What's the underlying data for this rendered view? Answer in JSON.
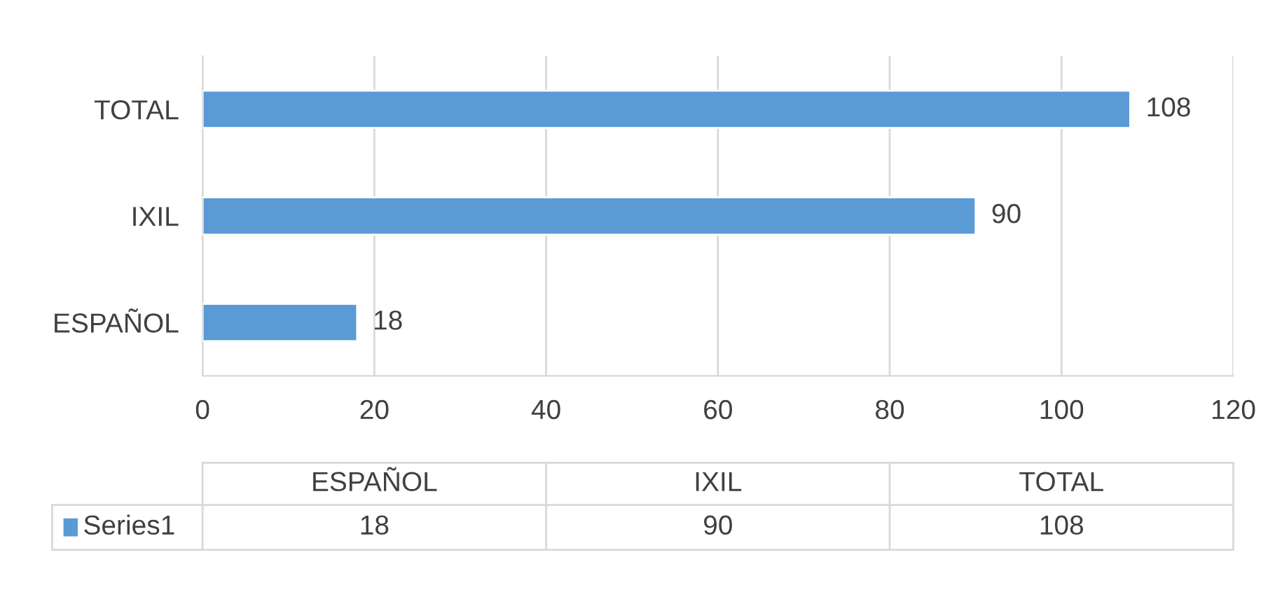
{
  "chart_data": {
    "type": "bar",
    "orientation": "horizontal",
    "categories": [
      "TOTAL",
      "IXIL",
      "ESPAÑOL"
    ],
    "series": [
      {
        "name": "Series1",
        "color": "#5b9bd5",
        "values": [
          108,
          90,
          18
        ],
        "value_labels": [
          "108",
          "90",
          "18"
        ]
      }
    ],
    "xlim": [
      0,
      120
    ],
    "xticks": [
      0,
      20,
      40,
      60,
      80,
      100,
      120
    ],
    "annotations": [
      "18",
      "90",
      "108"
    ],
    "grid": "x",
    "data_labels": true,
    "legend": "bottom"
  }
}
